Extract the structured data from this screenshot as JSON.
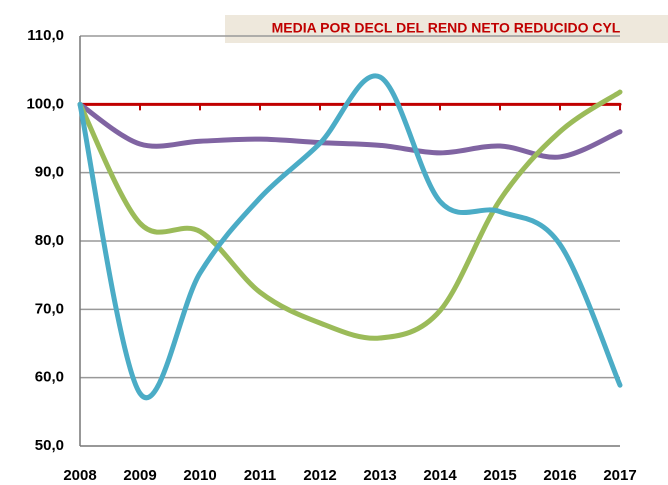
{
  "chart_data": {
    "type": "line",
    "title": "MEDIA POR DECL DEL REND NETO REDUCIDO CYL",
    "categories": [
      "2008",
      "2009",
      "2010",
      "2011",
      "2012",
      "2013",
      "2014",
      "2015",
      "2016",
      "2017"
    ],
    "series": [
      {
        "color": "#c00000",
        "values": [
          100,
          100,
          100,
          100,
          100,
          100,
          100,
          100,
          100,
          100
        ]
      },
      {
        "color": "#8064a2",
        "values": [
          100,
          94.2,
          94.6,
          94.9,
          94.4,
          94.0,
          92.9,
          93.9,
          92.3,
          96.0
        ]
      },
      {
        "color": "#9bbb59",
        "values": [
          100,
          82.6,
          81.4,
          72.5,
          68.0,
          65.8,
          69.8,
          86.0,
          96.0,
          101.8
        ]
      },
      {
        "color": "#4bacc6",
        "values": [
          100,
          57.7,
          75.3,
          86.3,
          94.3,
          104.0,
          85.8,
          84.3,
          79.5,
          58.9
        ]
      }
    ],
    "ylim": [
      50,
      110
    ],
    "yticks": [
      {
        "value": 50,
        "label": "50,0"
      },
      {
        "value": 60,
        "label": "60,0"
      },
      {
        "value": 70,
        "label": "70,0"
      },
      {
        "value": 80,
        "label": "80,0"
      },
      {
        "value": 90,
        "label": "90,0"
      },
      {
        "value": 100,
        "label": "100,0"
      },
      {
        "value": 110,
        "label": "110,0"
      }
    ],
    "grid": true,
    "smooth": true
  }
}
